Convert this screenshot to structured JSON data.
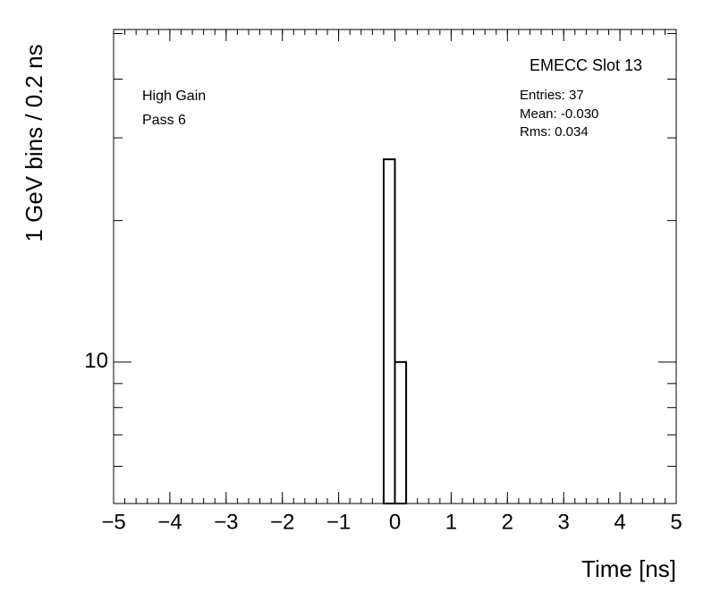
{
  "chart_data": {
    "type": "histogram",
    "title": "EMECC Slot 13",
    "stats": [
      "Entries: 37",
      "Mean: -0.030",
      "Rms: 0.034"
    ],
    "annotations": [
      "High Gain",
      "Pass 6"
    ],
    "xlabel": "Time [ns]",
    "ylabel": "1 GeV bins / 0.2 ns",
    "bins": [
      -0.2,
      0,
      0.2
    ],
    "counts": [
      27,
      10
    ],
    "color": "#000000",
    "xlim": [
      -5,
      5
    ],
    "xticks": [
      {
        "value": -5,
        "label": "−5"
      },
      {
        "value": -4,
        "label": "−4"
      },
      {
        "value": -3,
        "label": "−3"
      },
      {
        "value": -2,
        "label": "−2"
      },
      {
        "value": -1,
        "label": "−1"
      },
      0,
      1,
      2,
      3,
      4,
      5
    ],
    "xminor_step": 0.2,
    "ylim": [
      5,
      51
    ],
    "log_y": true,
    "yticks": [
      10
    ],
    "yminorticks": [
      6,
      7,
      8,
      9,
      20,
      30,
      40,
      50
    ]
  }
}
